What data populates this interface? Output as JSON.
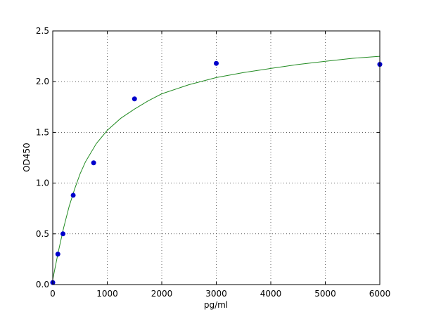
{
  "chart_data": {
    "type": "scatter",
    "title": "",
    "xlabel": "pg/ml",
    "ylabel": "OD450",
    "xlim": [
      0,
      6000
    ],
    "ylim": [
      0,
      2.5
    ],
    "xticks": [
      "0",
      "1000",
      "2000",
      "3000",
      "4000",
      "5000",
      "6000"
    ],
    "yticks": [
      "0.0",
      "0.5",
      "1.0",
      "1.5",
      "2.0",
      "2.5"
    ],
    "grid": true,
    "points": {
      "x": [
        0,
        93.75,
        187.5,
        375,
        750,
        1500,
        3000,
        6000
      ],
      "y": [
        0.02,
        0.3,
        0.5,
        0.88,
        1.2,
        1.83,
        2.18,
        2.17
      ],
      "color": "#0000cc"
    },
    "fit_curve": {
      "x": [
        0,
        100,
        200,
        300,
        400,
        500,
        600,
        800,
        1000,
        1250,
        1500,
        1750,
        2000,
        2500,
        3000,
        3500,
        4000,
        4500,
        5000,
        5500,
        6000
      ],
      "y": [
        0.05,
        0.32,
        0.56,
        0.77,
        0.94,
        1.09,
        1.21,
        1.39,
        1.52,
        1.64,
        1.73,
        1.81,
        1.88,
        1.97,
        2.04,
        2.09,
        2.13,
        2.17,
        2.2,
        2.23,
        2.25
      ],
      "color": "#228b22"
    }
  }
}
